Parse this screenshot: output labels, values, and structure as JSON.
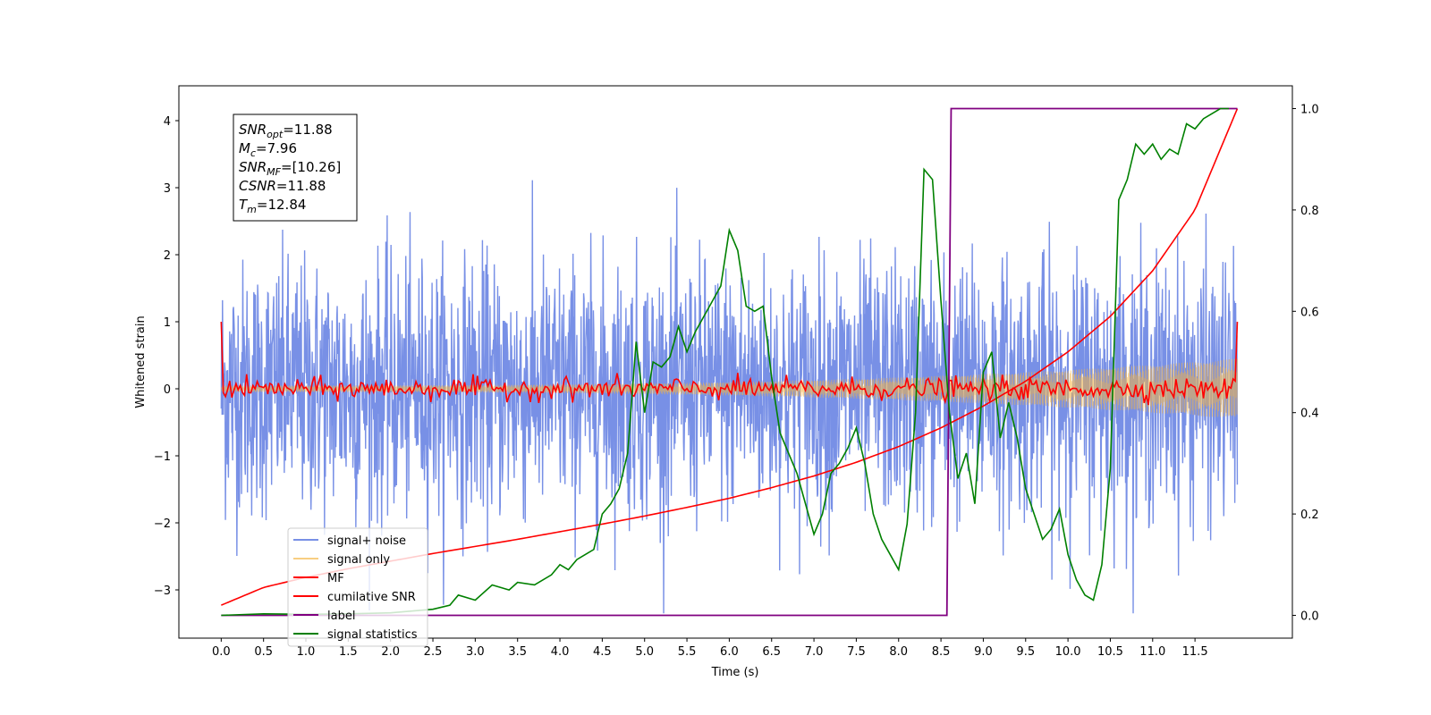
{
  "chart_data": {
    "type": "line",
    "xlabel": "Time (s)",
    "ylabel": "Whitened strain",
    "xlim": [
      -0.5,
      12.65
    ],
    "ylim": [
      -3.72,
      4.52
    ],
    "y2lim": [
      -0.045,
      1.045
    ],
    "x_ticks": [
      "0.0",
      "0.5",
      "1.0",
      "1.5",
      "2.0",
      "2.5",
      "3.0",
      "3.5",
      "4.0",
      "4.5",
      "5.0",
      "5.5",
      "6.0",
      "6.5",
      "7.0",
      "7.5",
      "8.0",
      "8.5",
      "9.0",
      "9.5",
      "10.0",
      "10.5",
      "11.0",
      "11.5"
    ],
    "y_ticks": [
      "−3",
      "−2",
      "−1",
      "0",
      "1",
      "2",
      "3",
      "4"
    ],
    "y2_ticks": [
      "0.0",
      "0.2",
      "0.4",
      "0.6",
      "0.8",
      "1.0"
    ],
    "annotation": {
      "lines": [
        {
          "base": "SNR",
          "sub": "opt",
          "value": "=11.88"
        },
        {
          "base": "M",
          "sub": "c",
          "value": "=7.96"
        },
        {
          "base": "SNR",
          "sub": "MF",
          "value": "=[10.26]"
        },
        {
          "base": "CSNR",
          "sub": "",
          "value": "=11.88"
        },
        {
          "base": "T",
          "sub": "m",
          "value": "=12.84"
        }
      ]
    },
    "series": [
      {
        "name": "signal+ noise",
        "color": "#7890e6",
        "axis": "left",
        "kind": "noise",
        "sigma": 0.95,
        "range": [
          0,
          12
        ]
      },
      {
        "name": "signal only",
        "color": "#f5b540",
        "axis": "left",
        "kind": "chirp",
        "envelope_start": 0.05,
        "envelope_end": 0.45
      },
      {
        "name": "MF",
        "color": "#ff0000",
        "axis": "left",
        "kind": "mf",
        "edge_value": 1.0,
        "mean": 0.0,
        "jitter": 0.08
      },
      {
        "name": "cumilative SNR",
        "color": "#ff0000",
        "axis": "right",
        "x": [
          0,
          0.5,
          1,
          1.5,
          2,
          2.5,
          3,
          3.5,
          4,
          4.5,
          5,
          5.5,
          6,
          6.5,
          7,
          7.5,
          8,
          8.5,
          9,
          9.5,
          10,
          10.5,
          11,
          11.5,
          12
        ],
        "values": [
          0.02,
          0.055,
          0.075,
          0.092,
          0.107,
          0.122,
          0.136,
          0.15,
          0.165,
          0.18,
          0.196,
          0.213,
          0.231,
          0.252,
          0.275,
          0.302,
          0.333,
          0.37,
          0.413,
          0.462,
          0.52,
          0.59,
          0.68,
          0.8,
          1.0
        ]
      },
      {
        "name": "label",
        "color": "#800080",
        "axis": "right",
        "x": [
          0,
          8.57,
          8.62,
          12
        ],
        "values": [
          0.0,
          0.0,
          1.0,
          1.0
        ]
      },
      {
        "name": "signal statistics",
        "color": "#008000",
        "axis": "right",
        "x": [
          0,
          0.5,
          1,
          1.5,
          2,
          2.5,
          2.7,
          2.8,
          3.0,
          3.2,
          3.4,
          3.5,
          3.7,
          3.9,
          4.0,
          4.1,
          4.2,
          4.3,
          4.4,
          4.5,
          4.6,
          4.7,
          4.8,
          4.9,
          5.0,
          5.1,
          5.2,
          5.3,
          5.4,
          5.5,
          5.6,
          5.7,
          5.8,
          5.9,
          6.0,
          6.1,
          6.2,
          6.3,
          6.4,
          6.5,
          6.6,
          6.7,
          6.8,
          6.9,
          7.0,
          7.1,
          7.2,
          7.3,
          7.4,
          7.5,
          7.6,
          7.7,
          7.8,
          7.9,
          8.0,
          8.1,
          8.2,
          8.3,
          8.4,
          8.5,
          8.6,
          8.7,
          8.8,
          8.9,
          9.0,
          9.1,
          9.2,
          9.3,
          9.4,
          9.5,
          9.6,
          9.7,
          9.8,
          9.9,
          10.0,
          10.1,
          10.2,
          10.3,
          10.4,
          10.5,
          10.6,
          10.7,
          10.8,
          10.9,
          11.0,
          11.1,
          11.2,
          11.3,
          11.4,
          11.5,
          11.6,
          11.7,
          11.8,
          11.9
        ],
        "values": [
          0.0,
          0.003,
          0.002,
          0.003,
          0.005,
          0.012,
          0.02,
          0.04,
          0.03,
          0.06,
          0.05,
          0.065,
          0.06,
          0.08,
          0.1,
          0.09,
          0.11,
          0.12,
          0.13,
          0.2,
          0.22,
          0.25,
          0.32,
          0.54,
          0.4,
          0.5,
          0.49,
          0.51,
          0.57,
          0.52,
          0.56,
          0.59,
          0.62,
          0.65,
          0.76,
          0.72,
          0.61,
          0.6,
          0.61,
          0.47,
          0.36,
          0.32,
          0.28,
          0.22,
          0.16,
          0.2,
          0.28,
          0.3,
          0.33,
          0.37,
          0.3,
          0.2,
          0.15,
          0.12,
          0.09,
          0.18,
          0.4,
          0.88,
          0.86,
          0.62,
          0.4,
          0.27,
          0.32,
          0.22,
          0.48,
          0.52,
          0.35,
          0.42,
          0.35,
          0.25,
          0.2,
          0.15,
          0.17,
          0.21,
          0.12,
          0.07,
          0.04,
          0.03,
          0.1,
          0.29,
          0.82,
          0.86,
          0.93,
          0.91,
          0.93,
          0.9,
          0.92,
          0.91,
          0.97,
          0.96,
          0.98,
          0.99,
          1.0,
          1.0
        ]
      }
    ],
    "legend": {
      "position": "lower-left"
    }
  }
}
